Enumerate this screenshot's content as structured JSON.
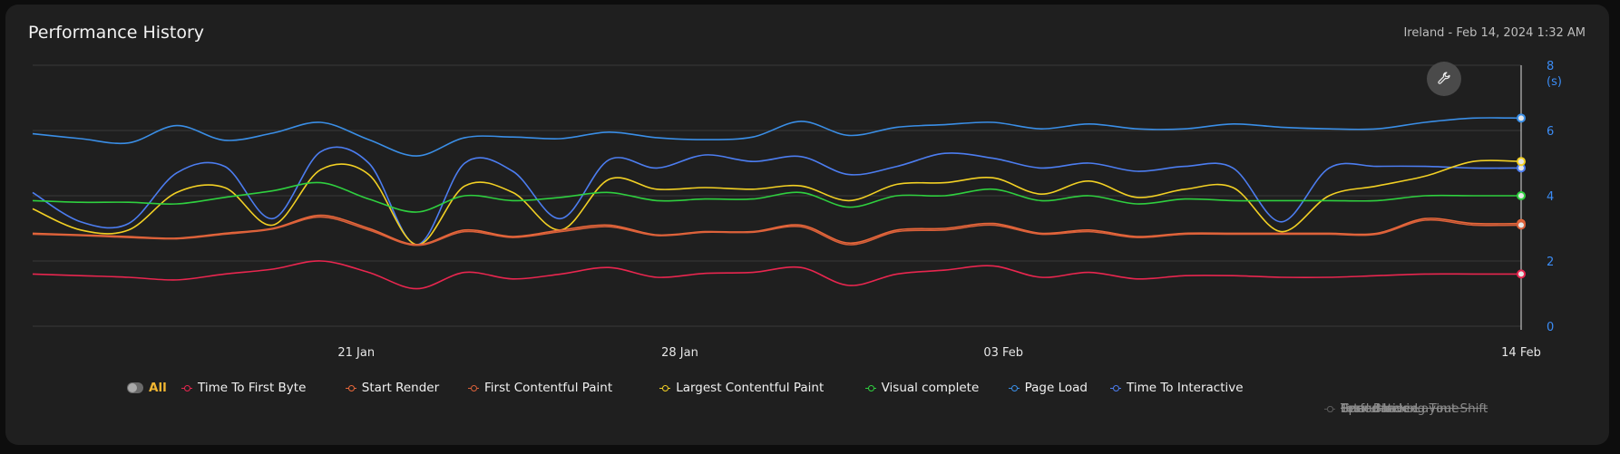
{
  "header": {
    "title": "Performance History",
    "meta": "Ireland - Feb 14, 2024 1:32 AM"
  },
  "icons": {
    "settings": "wrench-icon"
  },
  "chart_data": {
    "type": "line",
    "ylim": [
      0,
      8
    ],
    "y_ticks": [
      "0",
      "2",
      "4",
      "6",
      "8"
    ],
    "y_unit": "(s)",
    "x_ticks": [
      "21 Jan",
      "28 Jan",
      "03 Feb",
      "14 Feb"
    ],
    "x_tick_index": [
      10,
      20,
      30,
      46
    ],
    "grid": true,
    "series": [
      {
        "name": "Page Load",
        "color": "#3a8ee6",
        "values": [
          5.9,
          5.75,
          5.62,
          6.15,
          5.7,
          5.92,
          6.25,
          5.72,
          5.22,
          5.78,
          5.8,
          5.75,
          5.95,
          5.78,
          5.72,
          5.8,
          6.28,
          5.85,
          6.1,
          6.18,
          6.25,
          6.05,
          6.2,
          6.05,
          6.05,
          6.2,
          6.1,
          6.05,
          6.05,
          6.25,
          6.38,
          6.38
        ]
      },
      {
        "name": "Time To Interactive",
        "color": "#4c7df0",
        "values": [
          4.1,
          3.2,
          3.15,
          4.7,
          4.9,
          3.3,
          5.35,
          5.0,
          2.5,
          5.0,
          4.75,
          3.3,
          5.1,
          4.85,
          5.25,
          5.05,
          5.2,
          4.65,
          4.9,
          5.3,
          5.15,
          4.85,
          5.0,
          4.75,
          4.9,
          4.85,
          3.2,
          4.85,
          4.9,
          4.9,
          4.85,
          4.85
        ]
      },
      {
        "name": "Largest Contentful Paint",
        "color": "#f2d024",
        "values": [
          3.6,
          2.95,
          2.95,
          4.1,
          4.25,
          3.1,
          4.8,
          4.65,
          2.5,
          4.3,
          4.1,
          2.95,
          4.5,
          4.2,
          4.25,
          4.2,
          4.3,
          3.85,
          4.35,
          4.4,
          4.55,
          4.05,
          4.45,
          3.95,
          4.2,
          4.25,
          2.9,
          4.0,
          4.3,
          4.6,
          5.05,
          5.05
        ]
      },
      {
        "name": "Visual complete",
        "color": "#2fcf3f",
        "values": [
          3.85,
          3.8,
          3.8,
          3.75,
          3.95,
          4.15,
          4.4,
          3.9,
          3.5,
          4.0,
          3.85,
          3.95,
          4.1,
          3.85,
          3.9,
          3.9,
          4.1,
          3.65,
          4.0,
          4.0,
          4.2,
          3.85,
          4.0,
          3.75,
          3.9,
          3.85,
          3.85,
          3.85,
          3.85,
          4.0,
          4.0,
          4.0
        ]
      },
      {
        "name": "Start Render",
        "color": "#e8673a",
        "values": [
          2.85,
          2.8,
          2.75,
          2.7,
          2.85,
          3.0,
          3.4,
          3.0,
          2.5,
          2.95,
          2.75,
          2.95,
          3.1,
          2.8,
          2.9,
          2.9,
          3.1,
          2.55,
          2.95,
          3.0,
          3.15,
          2.85,
          2.95,
          2.75,
          2.85,
          2.85,
          2.85,
          2.85,
          2.85,
          3.3,
          3.15,
          3.15
        ]
      },
      {
        "name": "First Contentful Paint",
        "color": "#d9603a",
        "values": [
          2.82,
          2.78,
          2.72,
          2.68,
          2.82,
          2.98,
          3.35,
          2.95,
          2.48,
          2.9,
          2.72,
          2.9,
          3.05,
          2.78,
          2.88,
          2.88,
          3.05,
          2.5,
          2.9,
          2.95,
          3.1,
          2.82,
          2.9,
          2.72,
          2.82,
          2.82,
          2.82,
          2.82,
          2.82,
          3.25,
          3.1,
          3.1
        ]
      },
      {
        "name": "Time To First Byte",
        "color": "#e8264f",
        "values": [
          1.6,
          1.55,
          1.5,
          1.42,
          1.6,
          1.75,
          2.0,
          1.65,
          1.15,
          1.65,
          1.45,
          1.6,
          1.8,
          1.5,
          1.62,
          1.65,
          1.8,
          1.25,
          1.6,
          1.72,
          1.85,
          1.5,
          1.65,
          1.45,
          1.55,
          1.55,
          1.5,
          1.5,
          1.55,
          1.6,
          1.6,
          1.6
        ]
      }
    ]
  },
  "legend": {
    "all_label": "All",
    "items": [
      {
        "label": "Time To First Byte",
        "color": "#e8264f",
        "active": true
      },
      {
        "label": "Start Render",
        "color": "#e8673a",
        "active": true
      },
      {
        "label": "First Contentful Paint",
        "color": "#d9603a",
        "active": true
      },
      {
        "label": "Largest Contentful Paint",
        "color": "#f2d024",
        "active": true
      },
      {
        "label": "Visual complete",
        "color": "#2fcf3f",
        "active": true
      },
      {
        "label": "Page Load",
        "color": "#3a8ee6",
        "active": true
      },
      {
        "label": "Time To Interactive",
        "color": "#4c7df0",
        "active": true
      },
      {
        "label": "Total Blocking Time",
        "color": "#555555",
        "active": false
      },
      {
        "label": "Performance",
        "color": "#555555",
        "active": false
      },
      {
        "label": "Cumulative Layout Shift",
        "color": "#555555",
        "active": false
      },
      {
        "label": "Speed Index",
        "color": "#555555",
        "active": false
      }
    ]
  }
}
